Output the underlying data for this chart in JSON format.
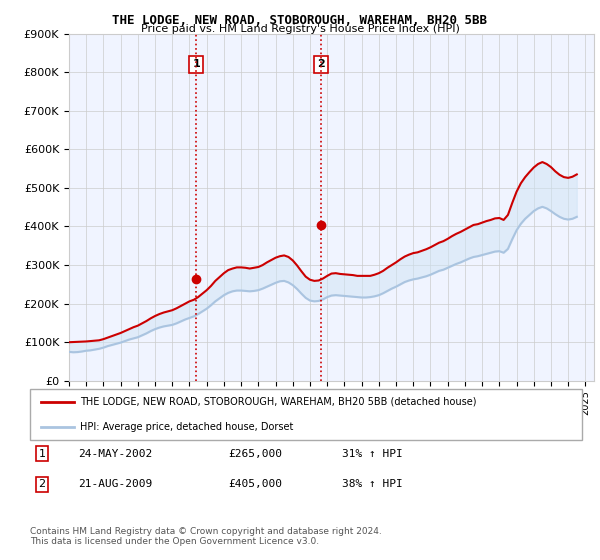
{
  "title": "THE LODGE, NEW ROAD, STOBOROUGH, WAREHAM, BH20 5BB",
  "subtitle": "Price paid vs. HM Land Registry's House Price Index (HPI)",
  "ylabel_ticks": [
    "£0",
    "£100K",
    "£200K",
    "£300K",
    "£400K",
    "£500K",
    "£600K",
    "£700K",
    "£800K",
    "£900K"
  ],
  "ylim": [
    0,
    900000
  ],
  "xlim_start": 1995.0,
  "xlim_end": 2025.5,
  "background_color": "#ffffff",
  "plot_bg_color": "#f0f4ff",
  "grid_color": "#cccccc",
  "hpi_line_color": "#aac4e0",
  "property_line_color": "#cc0000",
  "purchase1_x": 2002.388,
  "purchase1_y": 265000,
  "purchase2_x": 2009.638,
  "purchase2_y": 405000,
  "purchase1_label": "1",
  "purchase2_label": "2",
  "vline1_x": 2002.388,
  "vline2_x": 2009.638,
  "legend_property_label": "THE LODGE, NEW ROAD, STOBOROUGH, WAREHAM, BH20 5BB (detached house)",
  "legend_hpi_label": "HPI: Average price, detached house, Dorset",
  "table_row1": [
    "1",
    "24-MAY-2002",
    "£265,000",
    "31% ↑ HPI"
  ],
  "table_row2": [
    "2",
    "21-AUG-2009",
    "£405,000",
    "38% ↑ HPI"
  ],
  "footer": "Contains HM Land Registry data © Crown copyright and database right 2024.\nThis data is licensed under the Open Government Licence v3.0.",
  "hpi_data_x": [
    1995.0,
    1995.25,
    1995.5,
    1995.75,
    1996.0,
    1996.25,
    1996.5,
    1996.75,
    1997.0,
    1997.25,
    1997.5,
    1997.75,
    1998.0,
    1998.25,
    1998.5,
    1998.75,
    1999.0,
    1999.25,
    1999.5,
    1999.75,
    2000.0,
    2000.25,
    2000.5,
    2000.75,
    2001.0,
    2001.25,
    2001.5,
    2001.75,
    2002.0,
    2002.25,
    2002.5,
    2002.75,
    2003.0,
    2003.25,
    2003.5,
    2003.75,
    2004.0,
    2004.25,
    2004.5,
    2004.75,
    2005.0,
    2005.25,
    2005.5,
    2005.75,
    2006.0,
    2006.25,
    2006.5,
    2006.75,
    2007.0,
    2007.25,
    2007.5,
    2007.75,
    2008.0,
    2008.25,
    2008.5,
    2008.75,
    2009.0,
    2009.25,
    2009.5,
    2009.75,
    2010.0,
    2010.25,
    2010.5,
    2010.75,
    2011.0,
    2011.25,
    2011.5,
    2011.75,
    2012.0,
    2012.25,
    2012.5,
    2012.75,
    2013.0,
    2013.25,
    2013.5,
    2013.75,
    2014.0,
    2014.25,
    2014.5,
    2014.75,
    2015.0,
    2015.25,
    2015.5,
    2015.75,
    2016.0,
    2016.25,
    2016.5,
    2016.75,
    2017.0,
    2017.25,
    2017.5,
    2017.75,
    2018.0,
    2018.25,
    2018.5,
    2018.75,
    2019.0,
    2019.25,
    2019.5,
    2019.75,
    2020.0,
    2020.25,
    2020.5,
    2020.75,
    2021.0,
    2021.25,
    2021.5,
    2021.75,
    2022.0,
    2022.25,
    2022.5,
    2022.75,
    2023.0,
    2023.25,
    2023.5,
    2023.75,
    2024.0,
    2024.25,
    2024.5
  ],
  "hpi_data_y": [
    75000,
    74000,
    74500,
    76000,
    78000,
    79000,
    81000,
    83000,
    86000,
    90000,
    93000,
    96000,
    99000,
    103000,
    107000,
    110000,
    113000,
    118000,
    123000,
    129000,
    134000,
    138000,
    141000,
    143000,
    145000,
    149000,
    154000,
    159000,
    163000,
    167000,
    173000,
    180000,
    187000,
    196000,
    206000,
    214000,
    222000,
    228000,
    232000,
    234000,
    234000,
    233000,
    232000,
    233000,
    235000,
    239000,
    244000,
    249000,
    254000,
    258000,
    259000,
    255000,
    248000,
    238000,
    226000,
    215000,
    208000,
    206000,
    207000,
    211000,
    217000,
    221000,
    222000,
    221000,
    220000,
    219000,
    218000,
    217000,
    216000,
    216000,
    217000,
    219000,
    222000,
    227000,
    233000,
    239000,
    244000,
    250000,
    256000,
    260000,
    263000,
    265000,
    268000,
    271000,
    275000,
    280000,
    285000,
    288000,
    293000,
    298000,
    303000,
    307000,
    312000,
    317000,
    321000,
    323000,
    326000,
    329000,
    332000,
    335000,
    336000,
    332000,
    342000,
    367000,
    390000,
    407000,
    420000,
    430000,
    440000,
    447000,
    451000,
    447000,
    440000,
    432000,
    425000,
    420000,
    418000,
    420000,
    425000
  ],
  "property_data_x": [
    1995.0,
    1995.25,
    1995.5,
    1995.75,
    1996.0,
    1996.25,
    1996.5,
    1996.75,
    1997.0,
    1997.25,
    1997.5,
    1997.75,
    1998.0,
    1998.25,
    1998.5,
    1998.75,
    1999.0,
    1999.25,
    1999.5,
    1999.75,
    2000.0,
    2000.25,
    2000.5,
    2000.75,
    2001.0,
    2001.25,
    2001.5,
    2001.75,
    2002.0,
    2002.25,
    2002.5,
    2002.75,
    2003.0,
    2003.25,
    2003.5,
    2003.75,
    2004.0,
    2004.25,
    2004.5,
    2004.75,
    2005.0,
    2005.25,
    2005.5,
    2005.75,
    2006.0,
    2006.25,
    2006.5,
    2006.75,
    2007.0,
    2007.25,
    2007.5,
    2007.75,
    2008.0,
    2008.25,
    2008.5,
    2008.75,
    2009.0,
    2009.25,
    2009.5,
    2009.75,
    2010.0,
    2010.25,
    2010.5,
    2010.75,
    2011.0,
    2011.25,
    2011.5,
    2011.75,
    2012.0,
    2012.25,
    2012.5,
    2012.75,
    2013.0,
    2013.25,
    2013.5,
    2013.75,
    2014.0,
    2014.25,
    2014.5,
    2014.75,
    2015.0,
    2015.25,
    2015.5,
    2015.75,
    2016.0,
    2016.25,
    2016.5,
    2016.75,
    2017.0,
    2017.25,
    2017.5,
    2017.75,
    2018.0,
    2018.25,
    2018.5,
    2018.75,
    2019.0,
    2019.25,
    2019.5,
    2019.75,
    2020.0,
    2020.25,
    2020.5,
    2020.75,
    2021.0,
    2021.25,
    2021.5,
    2021.75,
    2022.0,
    2022.25,
    2022.5,
    2022.75,
    2023.0,
    2023.25,
    2023.5,
    2023.75,
    2024.0,
    2024.25,
    2024.5
  ],
  "property_data_y": [
    100000,
    100500,
    101000,
    101500,
    102000,
    103000,
    104000,
    105000,
    108000,
    112000,
    116000,
    120000,
    124000,
    129000,
    134000,
    139000,
    143000,
    149000,
    155000,
    162000,
    168000,
    173000,
    177000,
    180000,
    183000,
    188000,
    194000,
    200000,
    206000,
    210000,
    217000,
    226000,
    235000,
    246000,
    259000,
    269000,
    279000,
    287000,
    291000,
    294000,
    294000,
    293000,
    291000,
    293000,
    295000,
    300000,
    307000,
    313000,
    319000,
    323000,
    325000,
    321000,
    312000,
    299000,
    284000,
    270000,
    262000,
    259000,
    260000,
    265000,
    272000,
    278000,
    279000,
    277000,
    276000,
    275000,
    274000,
    272000,
    272000,
    272000,
    272000,
    275000,
    279000,
    285000,
    293000,
    300000,
    307000,
    315000,
    322000,
    327000,
    331000,
    333000,
    337000,
    341000,
    346000,
    352000,
    358000,
    362000,
    368000,
    375000,
    381000,
    386000,
    392000,
    398000,
    404000,
    406000,
    410000,
    414000,
    417000,
    421000,
    422000,
    417000,
    430000,
    461000,
    490000,
    512000,
    528000,
    541000,
    553000,
    562000,
    567000,
    562000,
    554000,
    543000,
    534000,
    528000,
    526000,
    529000,
    535000
  ],
  "xtick_years": [
    1995,
    1996,
    1997,
    1998,
    1999,
    2000,
    2001,
    2002,
    2003,
    2004,
    2005,
    2006,
    2007,
    2008,
    2009,
    2010,
    2011,
    2012,
    2013,
    2014,
    2015,
    2016,
    2017,
    2018,
    2019,
    2020,
    2021,
    2022,
    2023,
    2024,
    2025
  ]
}
